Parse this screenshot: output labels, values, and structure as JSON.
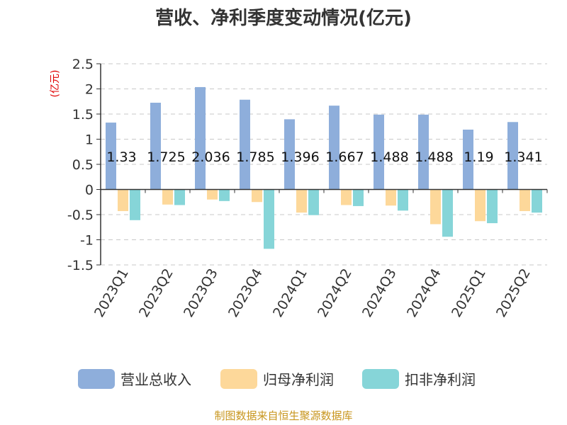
{
  "source_text": "制图数据来自恒生聚源数据库",
  "chart_data": {
    "type": "bar",
    "title": "营收、净利季度变动情况(亿元)",
    "unit_label": "(亿元)",
    "categories": [
      "2023Q1",
      "2023Q2",
      "2023Q3",
      "2023Q4",
      "2024Q1",
      "2024Q2",
      "2024Q3",
      "2024Q4",
      "2025Q1",
      "2025Q2"
    ],
    "ylim": [
      -1.5,
      2.5
    ],
    "yticks": [
      2.5,
      2,
      1.5,
      1,
      0.5,
      0,
      -0.5,
      -1,
      -1.5
    ],
    "ytick_labels": [
      "2.5",
      "2",
      "1.5",
      "1",
      "0.5",
      "0",
      "-0.5",
      "-1",
      "-1.5"
    ],
    "grid": true,
    "legend_position": "bottom",
    "series": [
      {
        "name": "营业总收入",
        "color": "#8eaedb",
        "values": [
          1.33,
          1.725,
          2.036,
          1.785,
          1.396,
          1.667,
          1.488,
          1.488,
          1.19,
          1.341
        ],
        "labels": [
          "1.33",
          "1.725",
          "2.036",
          "1.785",
          "1.396",
          "1.667",
          "1.488",
          "1.488",
          "1.19",
          "1.341"
        ]
      },
      {
        "name": "归母净利润",
        "color": "#fdd89a",
        "values": [
          -0.43,
          -0.3,
          -0.2,
          -0.25,
          -0.46,
          -0.31,
          -0.32,
          -0.69,
          -0.63,
          -0.43
        ]
      },
      {
        "name": "扣非净利润",
        "color": "#86d5d8",
        "values": [
          -0.61,
          -0.31,
          -0.23,
          -1.18,
          -0.51,
          -0.33,
          -0.42,
          -0.94,
          -0.67,
          -0.46
        ]
      }
    ]
  }
}
